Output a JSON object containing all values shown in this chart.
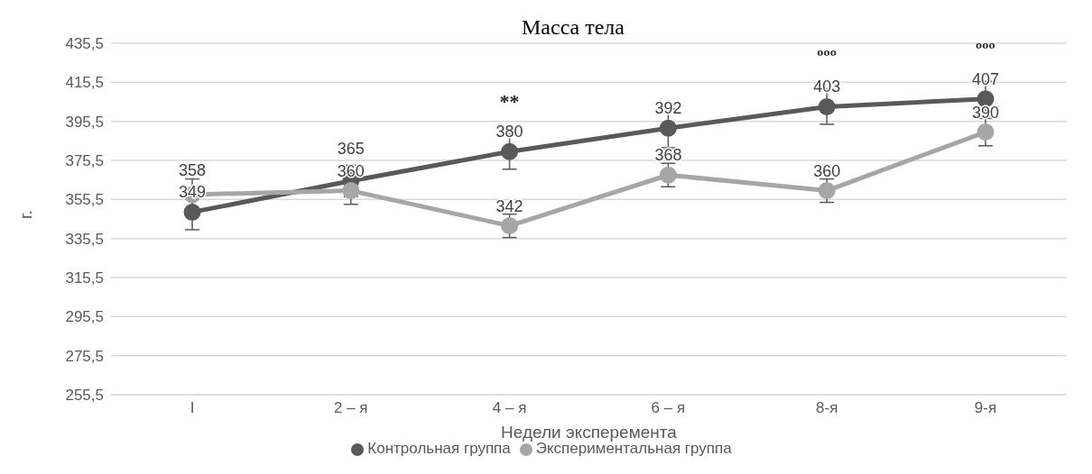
{
  "chart_data": {
    "type": "line",
    "title": "Масса тела",
    "xlabel": "Недели эксперемента",
    "ylabel": "г.",
    "categories": [
      "I",
      "2 – я",
      "4 – я",
      "6 – я",
      "8-я",
      "9-я"
    ],
    "series": [
      {
        "name": "Контрольная группа",
        "color": "#595959",
        "values": [
          349,
          365,
          380,
          392,
          403,
          407
        ],
        "errors": [
          9,
          8,
          9,
          10,
          9,
          9
        ]
      },
      {
        "name": "Экспериментальная группа",
        "color": "#a6a6a6",
        "values": [
          358,
          360,
          342,
          368,
          360,
          390
        ],
        "errors": [
          8,
          7,
          6,
          6,
          6,
          7
        ]
      }
    ],
    "ylim": [
      255.5,
      435.5
    ],
    "yticks": [
      {
        "value": 255.5,
        "label": "255,5"
      },
      {
        "value": 275.5,
        "label": "275,5"
      },
      {
        "value": 295.5,
        "label": "295,5"
      },
      {
        "value": 315.5,
        "label": "315,5"
      },
      {
        "value": 335.5,
        "label": "335,5"
      },
      {
        "value": 355.5,
        "label": "355,5"
      },
      {
        "value": 375.5,
        "label": "375,5"
      },
      {
        "value": 395.5,
        "label": "395,5"
      },
      {
        "value": 415.5,
        "label": "415,5"
      },
      {
        "value": 435.5,
        "label": "435,5"
      }
    ],
    "annotations": [
      {
        "text": "**",
        "x": "4 – я",
        "y": 380
      },
      {
        "text": "ººº",
        "x": "8-я",
        "y": 403
      },
      {
        "text": "ººº",
        "x": "9-я",
        "y": 407
      }
    ],
    "data_labels": true,
    "grid": "y",
    "legend": "bottom",
    "marker": "circle",
    "line_style": "solid"
  }
}
